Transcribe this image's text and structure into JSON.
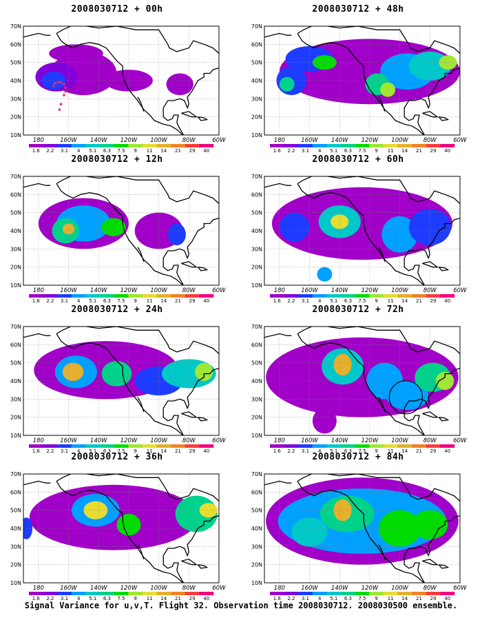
{
  "figure": {
    "caption": "Signal Variance for u,v,T. Flight 32. Observation time 2008030712. 2008030500 ensemble.",
    "panels": [
      {
        "id": "00h",
        "title": "2008030712 + 00h"
      },
      {
        "id": "48h",
        "title": "2008030712 + 48h"
      },
      {
        "id": "12h",
        "title": "2008030712 + 12h"
      },
      {
        "id": "60h",
        "title": "2008030712 + 60h"
      },
      {
        "id": "24h",
        "title": "2008030712 + 24h"
      },
      {
        "id": "72h",
        "title": "2008030712 + 72h"
      },
      {
        "id": "36h",
        "title": "2008030712 + 36h"
      },
      {
        "id": "84h",
        "title": "2008030712 + 84h"
      }
    ]
  },
  "axes": {
    "lat_labels": [
      "70N",
      "60N",
      "50N",
      "40N",
      "30N",
      "20N",
      "10N"
    ],
    "lon_labels": [
      "180",
      "160W",
      "140W",
      "120W",
      "100W",
      "80W",
      "60W"
    ],
    "lon_range": [
      -190,
      -60
    ],
    "lat_range": [
      10,
      70
    ]
  },
  "colorbar": {
    "labels": [
      "1.6",
      "2.2",
      "3.1",
      "4",
      "5.1",
      "6.3",
      "7.5",
      "9",
      "11",
      "14",
      "21",
      "29",
      "40"
    ],
    "colors": [
      "#a000c8",
      "#8200dc",
      "#1e3cff",
      "#00a0ff",
      "#00c8c8",
      "#00d28c",
      "#00dc00",
      "#a0e632",
      "#e6dc32",
      "#e6af2d",
      "#f08228",
      "#fa3c3c",
      "#f00082"
    ]
  },
  "annotations": {
    "flight_track_panel": "00h",
    "circle_panel": "72h"
  }
}
